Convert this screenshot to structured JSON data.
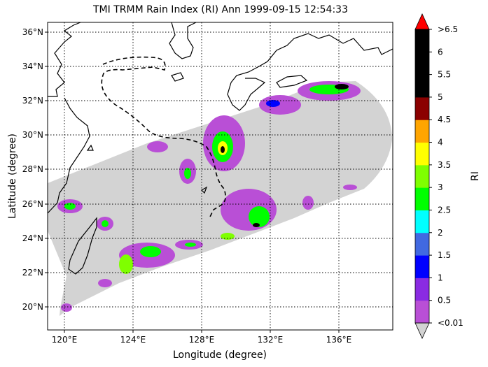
{
  "title": "TMI TRMM Rain Index (RI) Ann 1999-09-15 12:54:33",
  "xlabel": "Longitude (degree)",
  "ylabel": "Latitude (degree)",
  "lon_ticks": [
    "120°E",
    "124°E",
    "128°E",
    "132°E",
    "136°E"
  ],
  "lat_ticks": [
    "20°N",
    "22°N",
    "24°N",
    "26°N",
    "28°N",
    "30°N",
    "32°N",
    "34°N",
    "36°N"
  ],
  "colorbar": {
    "label": "RI",
    "tick_labels": [
      "<0.01",
      "0.5",
      "1",
      "1.5",
      "2",
      "2.5",
      "3",
      "3.5",
      "4",
      "4.5",
      "5",
      "5.5",
      "6",
      ">6.5"
    ],
    "colors": [
      "#b94fd6",
      "#8a2be2",
      "#0000ff",
      "#4169e1",
      "#00ffff",
      "#00ff00",
      "#7fff00",
      "#ffff00",
      "#ffa500",
      "#8b0000",
      "#000000",
      "#000000",
      "#000000"
    ],
    "under_color": "#d3d3d3",
    "over_color": "#ff0000"
  },
  "swath_color": "#d3d3d3",
  "grid": "dotted"
}
